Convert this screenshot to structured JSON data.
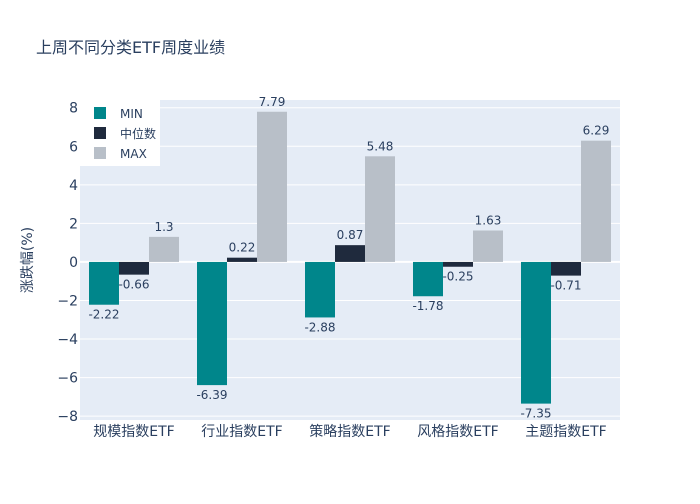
{
  "chart_data": {
    "type": "bar",
    "title": "上周不同分类ETF周度业绩",
    "xlabel": "",
    "ylabel": "涨跌幅(%)",
    "categories": [
      "规模指数ETF",
      "行业指数ETF",
      "策略指数ETF",
      "风格指数ETF",
      "主题指数ETF"
    ],
    "series": [
      {
        "name": "MIN",
        "color": "#00868b",
        "values": [
          -2.22,
          -6.39,
          -2.88,
          -1.78,
          -7.35
        ]
      },
      {
        "name": "中位数",
        "color": "#1f2a3d",
        "values": [
          -0.66,
          0.22,
          0.87,
          -0.25,
          -0.71
        ]
      },
      {
        "name": "MAX",
        "color": "#b8bfc8",
        "values": [
          1.3,
          7.79,
          5.48,
          1.63,
          6.29
        ]
      }
    ],
    "ylim": [
      -8.2,
      8.4
    ],
    "yticks": [
      8,
      6,
      4,
      2,
      0,
      -2,
      -4,
      -6,
      -8
    ],
    "grid": true,
    "legend_position": "top-left",
    "plot_background": "#e5ecf6"
  }
}
